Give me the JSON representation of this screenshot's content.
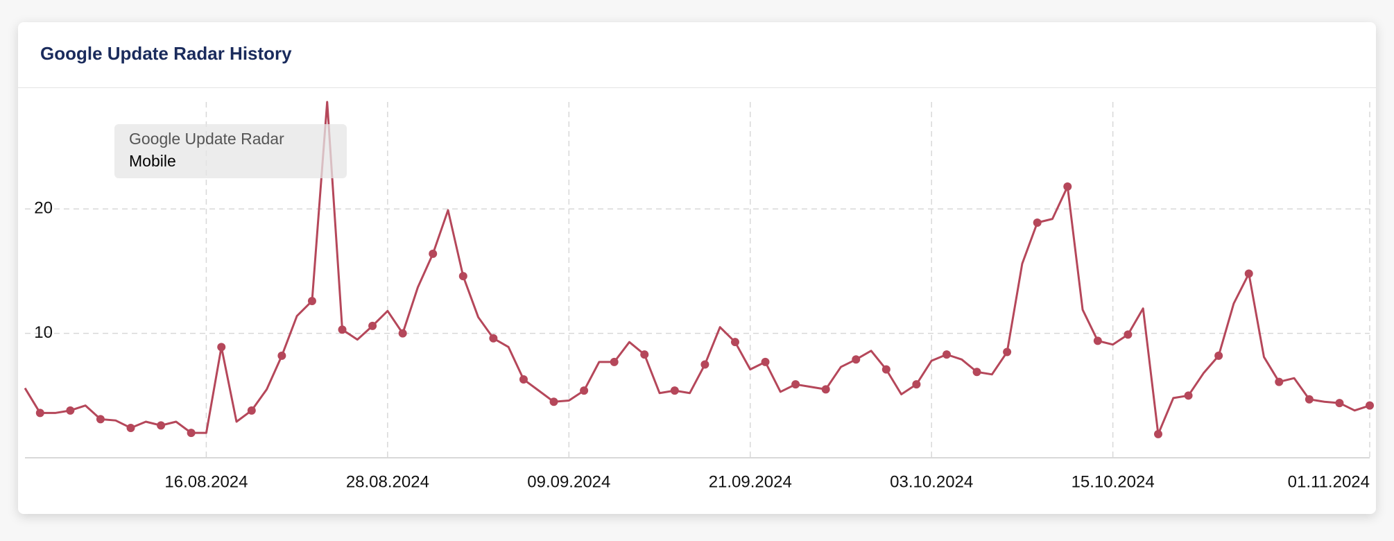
{
  "chart_data": {
    "type": "line",
    "title": "Google Update Radar History",
    "legend_title": "Google Update Radar",
    "x": [
      "04.08.2024",
      "05.08.2024",
      "06.08.2024",
      "07.08.2024",
      "08.08.2024",
      "09.08.2024",
      "10.08.2024",
      "11.08.2024",
      "12.08.2024",
      "13.08.2024",
      "14.08.2024",
      "15.08.2024",
      "16.08.2024",
      "17.08.2024",
      "18.08.2024",
      "19.08.2024",
      "20.08.2024",
      "21.08.2024",
      "22.08.2024",
      "23.08.2024",
      "24.08.2024",
      "25.08.2024",
      "26.08.2024",
      "27.08.2024",
      "28.08.2024",
      "29.08.2024",
      "30.08.2024",
      "31.08.2024",
      "01.09.2024",
      "02.09.2024",
      "03.09.2024",
      "04.09.2024",
      "05.09.2024",
      "06.09.2024",
      "07.09.2024",
      "08.09.2024",
      "09.09.2024",
      "10.09.2024",
      "11.09.2024",
      "12.09.2024",
      "13.09.2024",
      "14.09.2024",
      "15.09.2024",
      "16.09.2024",
      "17.09.2024",
      "18.09.2024",
      "19.09.2024",
      "20.09.2024",
      "21.09.2024",
      "22.09.2024",
      "23.09.2024",
      "24.09.2024",
      "25.09.2024",
      "26.09.2024",
      "27.09.2024",
      "28.09.2024",
      "29.09.2024",
      "30.09.2024",
      "01.10.2024",
      "02.10.2024",
      "03.10.2024",
      "04.10.2024",
      "05.10.2024",
      "06.10.2024",
      "07.10.2024",
      "08.10.2024",
      "09.10.2024",
      "10.10.2024",
      "11.10.2024",
      "12.10.2024",
      "13.10.2024",
      "14.10.2024",
      "15.10.2024",
      "16.10.2024",
      "17.10.2024",
      "18.10.2024",
      "19.10.2024",
      "20.10.2024",
      "21.10.2024",
      "22.10.2024",
      "23.10.2024",
      "24.10.2024",
      "25.10.2024",
      "26.10.2024",
      "27.10.2024",
      "28.10.2024",
      "29.10.2024",
      "30.10.2024",
      "31.10.2024",
      "01.11.2024"
    ],
    "series": [
      {
        "name": "Mobile",
        "color": "#b5475a",
        "values": [
          5.6,
          3.6,
          3.6,
          3.8,
          4.2,
          3.1,
          3.0,
          2.4,
          2.9,
          2.6,
          2.9,
          2.0,
          2.0,
          8.9,
          2.9,
          3.8,
          5.5,
          8.2,
          11.4,
          12.6,
          28.6,
          10.3,
          9.5,
          10.6,
          11.8,
          10.0,
          13.7,
          16.4,
          19.9,
          14.6,
          11.3,
          9.6,
          8.9,
          6.3,
          5.4,
          4.5,
          4.6,
          5.4,
          7.7,
          7.7,
          9.3,
          8.3,
          5.2,
          5.4,
          5.2,
          7.5,
          10.5,
          9.3,
          7.1,
          7.7,
          5.3,
          5.9,
          5.7,
          5.5,
          7.3,
          7.9,
          8.6,
          7.1,
          5.1,
          5.9,
          7.8,
          8.3,
          7.9,
          6.9,
          6.7,
          8.5,
          15.6,
          18.9,
          19.2,
          21.8,
          11.9,
          9.4,
          9.1,
          9.9,
          12.0,
          1.9,
          4.8,
          5.0,
          6.8,
          8.2,
          12.4,
          14.8,
          8.1,
          6.1,
          6.4,
          4.7,
          4.5,
          4.4,
          3.8,
          4.2
        ]
      }
    ],
    "xticks": [
      "16.08.2024",
      "28.08.2024",
      "09.09.2024",
      "21.09.2024",
      "03.10.2024",
      "15.10.2024",
      "01.11.2024"
    ],
    "ylim": [
      0,
      28.6
    ],
    "yticks": [
      10,
      20
    ],
    "grid": true
  }
}
